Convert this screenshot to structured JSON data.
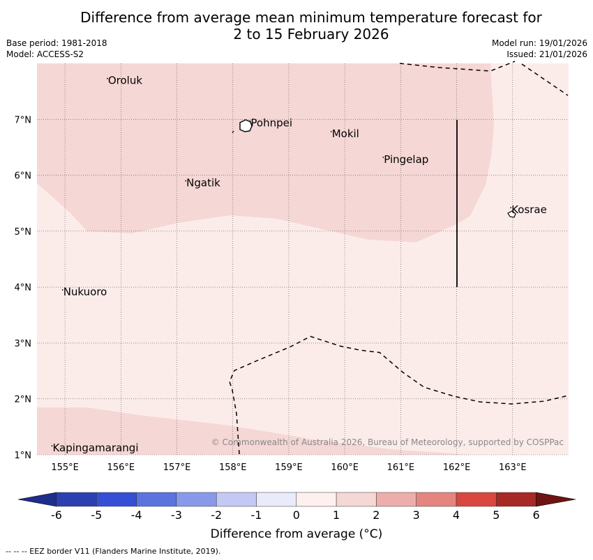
{
  "title": {
    "line1": "Difference from average mean minimum temperature forecast for",
    "line2": "2 to 15 February 2026"
  },
  "meta": {
    "base_period": "Base period: 1981-2018",
    "model": "Model: ACCESS-S2",
    "model_run": "Model run: 19/01/2026",
    "issued": "Issued: 21/01/2026"
  },
  "map": {
    "lon_range": [
      154.5,
      164.0
    ],
    "lat_range": [
      1.0,
      8.0
    ],
    "x_ticks": [
      "155°E",
      "156°E",
      "157°E",
      "158°E",
      "159°E",
      "160°E",
      "161°E",
      "162°E",
      "163°E"
    ],
    "y_ticks": [
      "7°N",
      "6°N",
      "5°N",
      "4°N",
      "3°N",
      "2°N",
      "1°N"
    ],
    "places": [
      {
        "name": "Oroluk",
        "lon": 155.77,
        "lat": 7.63
      },
      {
        "name": "Pohnpei",
        "lon": 158.32,
        "lat": 6.87
      },
      {
        "name": "Mokil",
        "lon": 159.77,
        "lat": 6.68
      },
      {
        "name": "Pingelap",
        "lon": 160.7,
        "lat": 6.22
      },
      {
        "name": "Ngatik",
        "lon": 157.17,
        "lat": 5.8
      },
      {
        "name": "Kosrae",
        "lon": 162.98,
        "lat": 5.32
      },
      {
        "name": "Nukuoro",
        "lon": 154.97,
        "lat": 3.85
      },
      {
        "name": "Kapingamarangi",
        "lon": 154.78,
        "lat": 1.06
      }
    ],
    "copyright": "© Commonwealth of Australia 2026, Bureau of Meteorology, supported by COSPPac",
    "colors": {
      "band_1_2": "#f5d7d5",
      "band_0_1": "#fbecea",
      "land": "#ffffff",
      "grid": "#555555",
      "eez": "#000000"
    }
  },
  "colorbar": {
    "title": "Difference from average (°C)",
    "tick_labels": [
      "-6",
      "-5",
      "-4",
      "-3",
      "-2",
      "-1",
      "0",
      "1",
      "2",
      "3",
      "4",
      "5",
      "6"
    ],
    "colors": [
      "#1e2d8c",
      "#2a40b0",
      "#344fd6",
      "#5a73df",
      "#8899ea",
      "#c3c9f2",
      "#e9ebfb",
      "#fdf0ee",
      "#f5d7d5",
      "#edaeab",
      "#e58580",
      "#d9473f",
      "#a82825",
      "#6e1411"
    ]
  },
  "footer": {
    "eez_legend": "--  --  -- EEZ border V11 (Flanders Marine Institute, 2019)."
  }
}
